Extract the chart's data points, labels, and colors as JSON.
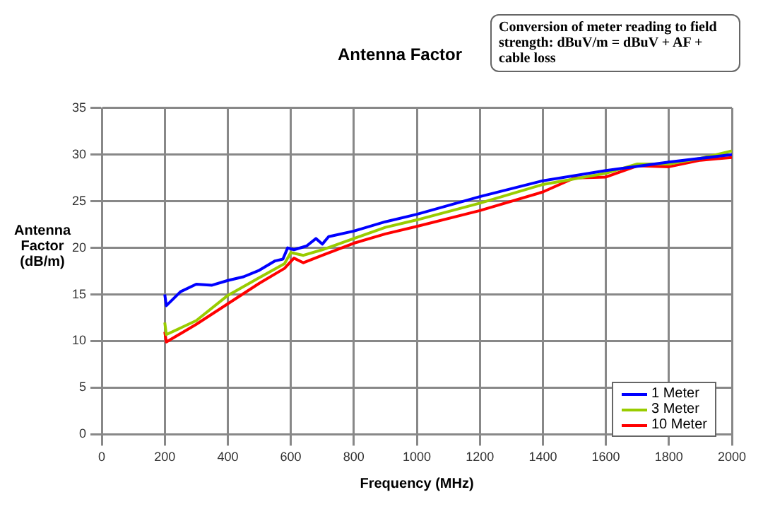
{
  "chart_data": {
    "type": "line",
    "title": "Antenna Factor",
    "xlabel": "Frequency (MHz)",
    "ylabel": "Antenna Factor (dB/m)",
    "annotations": [
      "Conversion of meter reading to field strength: dBuV/m = dBuV + AF + cable loss"
    ],
    "xlim": [
      0,
      2000
    ],
    "xticks": [
      0,
      200,
      400,
      600,
      800,
      1000,
      1200,
      1400,
      1600,
      1800,
      2000
    ],
    "ylim": [
      0,
      35
    ],
    "yticks": [
      0,
      5,
      10,
      15,
      20,
      25,
      30,
      35
    ],
    "grid": true,
    "legend": "bottom right",
    "marker": "none",
    "line_style": "solid",
    "series": [
      {
        "name": "1 Meter",
        "color": "#0000ff",
        "x": [
          200,
          205,
          250,
          300,
          350,
          400,
          450,
          500,
          550,
          575,
          590,
          610,
          650,
          680,
          700,
          720,
          800,
          900,
          1000,
          1200,
          1400,
          1600,
          1800,
          2000
        ],
        "values": [
          15,
          13.8,
          15.3,
          16.1,
          16,
          16.5,
          16.9,
          17.6,
          18.6,
          18.8,
          20,
          19.8,
          20.2,
          21,
          20.4,
          21.2,
          21.8,
          22.8,
          23.6,
          25.5,
          27.2,
          28.3,
          29.2,
          30
        ]
      },
      {
        "name": "3 Meter",
        "color": "#99cc00",
        "x": [
          200,
          205,
          300,
          400,
          500,
          580,
          600,
          640,
          700,
          800,
          900,
          1000,
          1200,
          1400,
          1600,
          1700,
          1800,
          1900,
          2000
        ],
        "values": [
          12,
          10.7,
          12.2,
          14.9,
          16.8,
          18.3,
          19.5,
          19.2,
          19.8,
          21,
          22.2,
          23,
          24.8,
          26.8,
          28,
          29,
          29,
          29.6,
          30.4
        ]
      },
      {
        "name": "10 Meter",
        "color": "#ff0000",
        "x": [
          200,
          205,
          300,
          400,
          500,
          580,
          610,
          640,
          700,
          800,
          900,
          1000,
          1200,
          1400,
          1500,
          1600,
          1700,
          1800,
          1900,
          2000
        ],
        "values": [
          11,
          9.9,
          11.8,
          14,
          16.2,
          17.8,
          18.9,
          18.4,
          19.2,
          20.5,
          21.5,
          22.3,
          24,
          26,
          27.5,
          27.6,
          28.8,
          28.7,
          29.4,
          29.7
        ]
      }
    ]
  }
}
